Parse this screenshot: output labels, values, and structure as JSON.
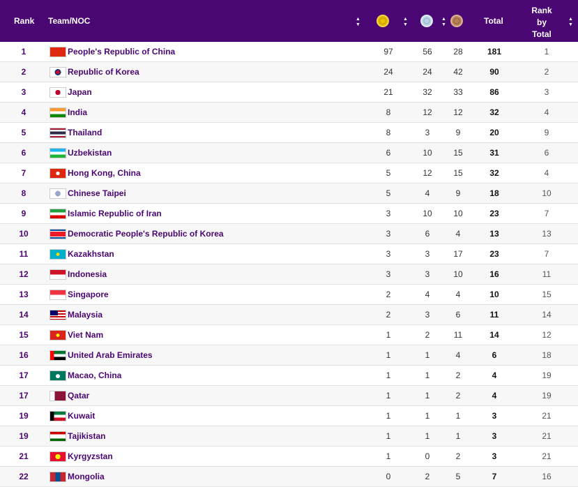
{
  "header": {
    "rank": "Rank",
    "team": "Team/NOC",
    "total": "Total",
    "rank_by_total": [
      "Rank",
      "by",
      "Total"
    ],
    "medal_icons": [
      "gold-medal-icon",
      "silver-medal-icon",
      "bronze-medal-icon"
    ],
    "sort_icon": "sort-icon"
  },
  "colors": {
    "header_bg": "#4a0672",
    "team_text": "#4a0672"
  },
  "rows": [
    {
      "rank": "1",
      "team": "People's Republic of China",
      "gold": "97",
      "silver": "56",
      "bronze": "28",
      "total": "181",
      "rank_by_total": "1",
      "flag": "china-flag-icon"
    },
    {
      "rank": "2",
      "team": "Republic of Korea",
      "gold": "24",
      "silver": "24",
      "bronze": "42",
      "total": "90",
      "rank_by_total": "2",
      "flag": "korea-flag-icon"
    },
    {
      "rank": "3",
      "team": "Japan",
      "gold": "21",
      "silver": "32",
      "bronze": "33",
      "total": "86",
      "rank_by_total": "3",
      "flag": "japan-flag-icon"
    },
    {
      "rank": "4",
      "team": "India",
      "gold": "8",
      "silver": "12",
      "bronze": "12",
      "total": "32",
      "rank_by_total": "4",
      "flag": "india-flag-icon"
    },
    {
      "rank": "5",
      "team": "Thailand",
      "gold": "8",
      "silver": "3",
      "bronze": "9",
      "total": "20",
      "rank_by_total": "9",
      "flag": "thailand-flag-icon"
    },
    {
      "rank": "6",
      "team": "Uzbekistan",
      "gold": "6",
      "silver": "10",
      "bronze": "15",
      "total": "31",
      "rank_by_total": "6",
      "flag": "uzbekistan-flag-icon"
    },
    {
      "rank": "7",
      "team": "Hong Kong, China",
      "gold": "5",
      "silver": "12",
      "bronze": "15",
      "total": "32",
      "rank_by_total": "4",
      "flag": "hong-kong-flag-icon"
    },
    {
      "rank": "8",
      "team": "Chinese Taipei",
      "gold": "5",
      "silver": "4",
      "bronze": "9",
      "total": "18",
      "rank_by_total": "10",
      "flag": "chinese-taipei-flag-icon"
    },
    {
      "rank": "9",
      "team": "Islamic Republic of Iran",
      "gold": "3",
      "silver": "10",
      "bronze": "10",
      "total": "23",
      "rank_by_total": "7",
      "flag": "iran-flag-icon"
    },
    {
      "rank": "10",
      "team": "Democratic People's Republic of Korea",
      "gold": "3",
      "silver": "6",
      "bronze": "4",
      "total": "13",
      "rank_by_total": "13",
      "flag": "dpr-korea-flag-icon"
    },
    {
      "rank": "11",
      "team": "Kazakhstan",
      "gold": "3",
      "silver": "3",
      "bronze": "17",
      "total": "23",
      "rank_by_total": "7",
      "flag": "kazakhstan-flag-icon"
    },
    {
      "rank": "12",
      "team": "Indonesia",
      "gold": "3",
      "silver": "3",
      "bronze": "10",
      "total": "16",
      "rank_by_total": "11",
      "flag": "indonesia-flag-icon"
    },
    {
      "rank": "13",
      "team": "Singapore",
      "gold": "2",
      "silver": "4",
      "bronze": "4",
      "total": "10",
      "rank_by_total": "15",
      "flag": "singapore-flag-icon"
    },
    {
      "rank": "14",
      "team": "Malaysia",
      "gold": "2",
      "silver": "3",
      "bronze": "6",
      "total": "11",
      "rank_by_total": "14",
      "flag": "malaysia-flag-icon"
    },
    {
      "rank": "15",
      "team": "Viet Nam",
      "gold": "1",
      "silver": "2",
      "bronze": "11",
      "total": "14",
      "rank_by_total": "12",
      "flag": "viet-nam-flag-icon"
    },
    {
      "rank": "16",
      "team": "United Arab Emirates",
      "gold": "1",
      "silver": "1",
      "bronze": "4",
      "total": "6",
      "rank_by_total": "18",
      "flag": "uae-flag-icon"
    },
    {
      "rank": "17",
      "team": "Macao, China",
      "gold": "1",
      "silver": "1",
      "bronze": "2",
      "total": "4",
      "rank_by_total": "19",
      "flag": "macao-flag-icon"
    },
    {
      "rank": "17",
      "team": "Qatar",
      "gold": "1",
      "silver": "1",
      "bronze": "2",
      "total": "4",
      "rank_by_total": "19",
      "flag": "qatar-flag-icon"
    },
    {
      "rank": "19",
      "team": "Kuwait",
      "gold": "1",
      "silver": "1",
      "bronze": "1",
      "total": "3",
      "rank_by_total": "21",
      "flag": "kuwait-flag-icon"
    },
    {
      "rank": "19",
      "team": "Tajikistan",
      "gold": "1",
      "silver": "1",
      "bronze": "1",
      "total": "3",
      "rank_by_total": "21",
      "flag": "tajikistan-flag-icon"
    },
    {
      "rank": "21",
      "team": "Kyrgyzstan",
      "gold": "1",
      "silver": "0",
      "bronze": "2",
      "total": "3",
      "rank_by_total": "21",
      "flag": "kyrgyzstan-flag-icon"
    },
    {
      "rank": "22",
      "team": "Mongolia",
      "gold": "0",
      "silver": "2",
      "bronze": "5",
      "total": "7",
      "rank_by_total": "16",
      "flag": "mongolia-flag-icon"
    }
  ]
}
